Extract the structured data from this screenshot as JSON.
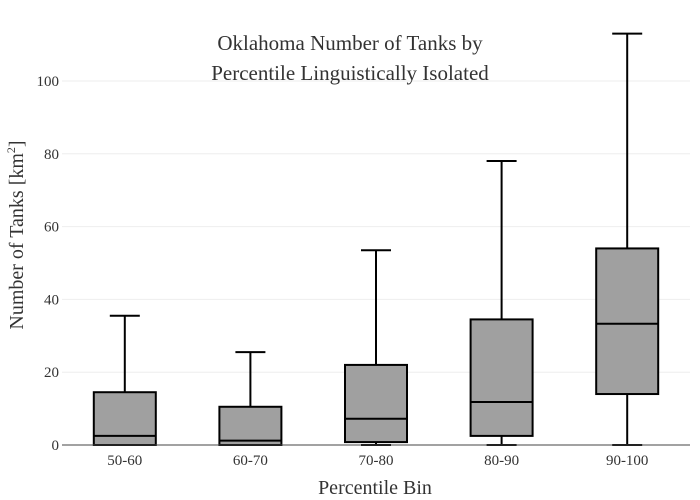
{
  "chart_data": {
    "type": "box",
    "title_lines": [
      "Oklahoma Number of Tanks by",
      "Percentile Linguistically Isolated"
    ],
    "xlabel": "Percentile Bin",
    "ylabel": "Number of Tanks  [km",
    "ylabel_superscript": "2",
    "ylabel_suffix": "]",
    "ylim": [
      0,
      114
    ],
    "yticks": [
      0,
      20,
      40,
      60,
      80,
      100
    ],
    "grid": true,
    "colors": {
      "box_fill": "#a0a0a0",
      "outline": "#000000",
      "grid": "#eeeeee"
    },
    "categories": [
      "50-60",
      "60-70",
      "70-80",
      "80-90",
      "90-100"
    ],
    "boxes": [
      {
        "category": "50-60",
        "min": 0,
        "q1": 0,
        "median": 2.5,
        "q3": 14.5,
        "max": 35.5
      },
      {
        "category": "60-70",
        "min": 0,
        "q1": 0,
        "median": 1.2,
        "q3": 10.5,
        "max": 25.5
      },
      {
        "category": "70-80",
        "min": 0,
        "q1": 0.8,
        "median": 7.2,
        "q3": 22,
        "max": 53.5
      },
      {
        "category": "80-90",
        "min": 0,
        "q1": 2.5,
        "median": 11.8,
        "q3": 34.5,
        "max": 78
      },
      {
        "category": "90-100",
        "min": 0,
        "q1": 14,
        "median": 33.3,
        "q3": 54,
        "max": 113
      }
    ]
  }
}
